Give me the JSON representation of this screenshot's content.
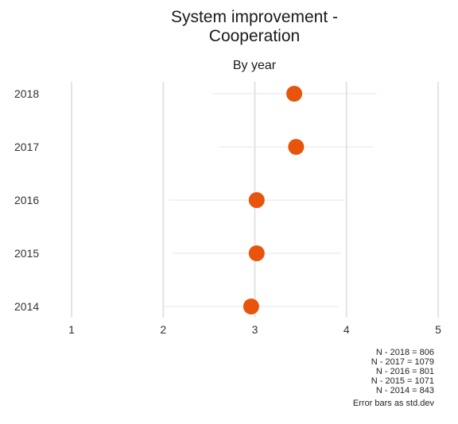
{
  "chart_data": {
    "type": "scatter",
    "title_line1": "System improvement -",
    "title_line2": "Cooperation",
    "subtitle": "By year",
    "xlim": [
      1,
      5
    ],
    "x_ticks": [
      "1",
      "2",
      "3",
      "4",
      "5"
    ],
    "categories": [
      "2018",
      "2017",
      "2016",
      "2015",
      "2014"
    ],
    "series": [
      {
        "points": [
          {
            "category": "2018",
            "mean": 3.43,
            "low": 2.53,
            "high": 4.33
          },
          {
            "category": "2017",
            "mean": 3.45,
            "low": 2.61,
            "high": 4.29
          },
          {
            "category": "2016",
            "mean": 3.02,
            "low": 2.06,
            "high": 3.98
          },
          {
            "category": "2015",
            "mean": 3.02,
            "low": 2.1,
            "high": 3.94
          },
          {
            "category": "2014",
            "mean": 2.96,
            "low": 2.01,
            "high": 3.91
          }
        ]
      }
    ],
    "grid": "vertical",
    "point_color": "#e8540c",
    "errorbar_color": "#e6e6e6",
    "notes": [
      "N - 2018 = 806",
      "N - 2017 = 1079",
      "N - 2016 = 801",
      "N - 2015 = 1071",
      "N - 2014 = 843"
    ],
    "caption": "Error bars as std.dev"
  }
}
